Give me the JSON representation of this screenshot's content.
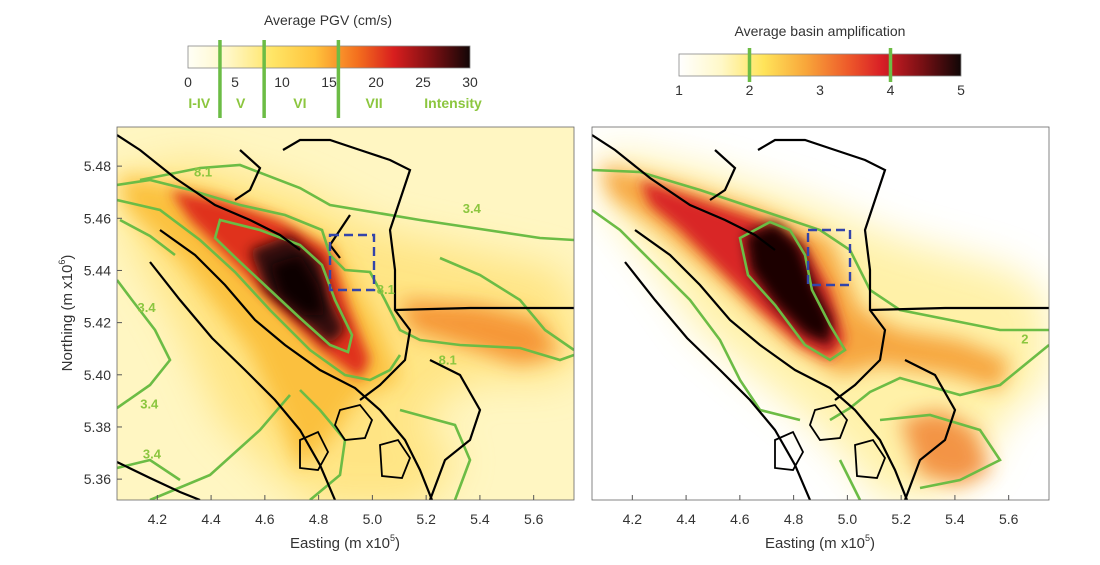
{
  "chart_data": [
    {
      "type": "heatmap",
      "title": "",
      "xlabel": "Easting (m x10",
      "xlabel_exp": "5",
      "ylabel": "Northing (m x10",
      "ylabel_exp": "6",
      "x_ticks": [
        "4.2",
        "4.4",
        "4.6",
        "4.8",
        "5.0",
        "5.2",
        "5.4",
        "5.6"
      ],
      "x_tick_values": [
        4.2,
        4.4,
        4.6,
        4.8,
        5.0,
        5.2,
        5.4,
        5.6
      ],
      "y_ticks": [
        "5.48",
        "5.46",
        "5.44",
        "5.42",
        "5.40",
        "5.38",
        "5.36"
      ],
      "y_tick_values": [
        5.48,
        5.46,
        5.44,
        5.42,
        5.4,
        5.38,
        5.36
      ],
      "xlim": [
        4.05,
        5.75
      ],
      "ylim": [
        5.352,
        5.495
      ],
      "colorbar": {
        "title": "Average PGV (cm/s)",
        "range": [
          0,
          30
        ],
        "ticks": [
          "0",
          "5",
          "10",
          "15",
          "20",
          "25",
          "30"
        ],
        "tick_values": [
          0,
          5,
          10,
          15,
          20,
          25,
          30
        ],
        "threshold_values": [
          3.4,
          8.1,
          16
        ],
        "intensity_labels": [
          "I-IV",
          "V",
          "VI",
          "VII"
        ],
        "intensity_label_values": [
          1.2,
          5.6,
          11.9,
          19.8
        ],
        "intensity_caption": "Intensity",
        "intensity_caption_value": 28.2
      },
      "contour_labels": [
        {
          "text": "3.4",
          "x": 5.37,
          "y": 5.462
        },
        {
          "text": "8.1",
          "x": 5.28,
          "y": 5.404
        },
        {
          "text": "8.1",
          "x": 5.05,
          "y": 5.431
        },
        {
          "text": "3.4",
          "x": 4.17,
          "y": 5.387
        },
        {
          "text": "3.4",
          "x": 4.18,
          "y": 5.368
        },
        {
          "text": "3.4",
          "x": 4.16,
          "y": 5.424
        },
        {
          "text": "8.1",
          "x": 4.37,
          "y": 5.476
        }
      ]
    },
    {
      "type": "heatmap",
      "title": "",
      "xlabel": "Easting (m x10",
      "xlabel_exp": "5",
      "x_ticks": [
        "4.2",
        "4.4",
        "4.6",
        "4.8",
        "5.0",
        "5.2",
        "5.4",
        "5.6"
      ],
      "x_tick_values": [
        4.2,
        4.4,
        4.6,
        4.8,
        5.0,
        5.2,
        5.4,
        5.6
      ],
      "xlim": [
        4.05,
        5.75
      ],
      "ylim": [
        5.352,
        5.495
      ],
      "colorbar": {
        "title": "Average basin amplification",
        "range": [
          1,
          5
        ],
        "ticks": [
          "1",
          "2",
          "3",
          "4",
          "5"
        ],
        "tick_values": [
          1,
          2,
          3,
          4,
          5
        ],
        "threshold_values": [
          2,
          4
        ]
      },
      "contour_labels": [
        {
          "text": "2",
          "x": 5.66,
          "y": 5.412
        }
      ]
    }
  ],
  "colors": {
    "contour_green": "#6cbc45",
    "label_green": "#8cc63f",
    "coastline": "#000000",
    "box_blue": "#3344aa"
  }
}
